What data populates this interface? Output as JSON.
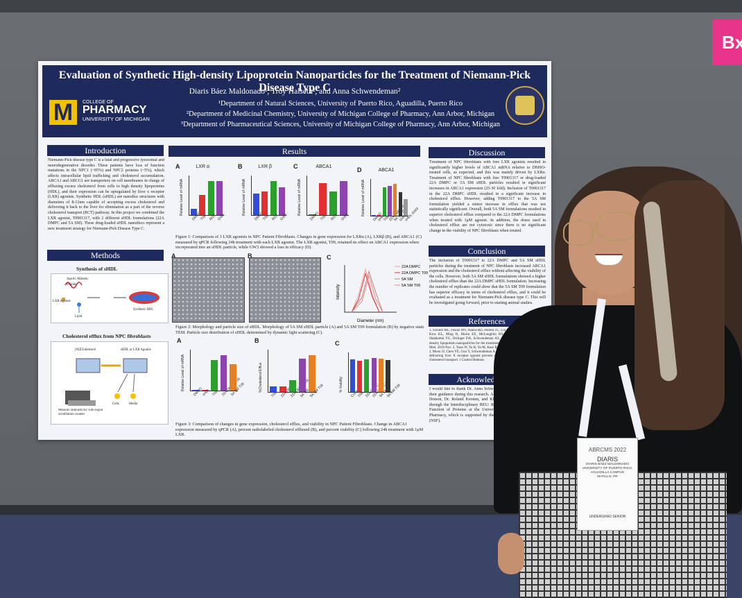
{
  "scene": {
    "sign_letters": "Bx"
  },
  "poster": {
    "title": "Evaluation of Synthetic High-density Lipoprotein Nanoparticles for the Treatment of Niemann-Pick Disease Type C",
    "authors": "Diaris Báez Maldonado¹, Troy Halseth², and Anna Schwendeman²",
    "affiliations": [
      "¹Department of Natural Sciences, University of Puerto Rico, Aguadilla, Puerto Rico",
      "²Department of Medicinal Chemistry, University of Michigan College of Pharmacy, Ann Arbor, Michigan",
      "³Department of Pharmaceutical Sciences, University of Michigan College of Pharmacy, Ann Arbor, Michigan"
    ],
    "logo": {
      "letter": "M",
      "line1": "COLLEGE OF",
      "line2": "PHARMACY",
      "line3": "UNIVERSITY OF MICHIGAN"
    },
    "sections": {
      "introduction": "Introduction",
      "methods": "Methods",
      "results": "Results",
      "discussion": "Discussion",
      "conclusion": "Conclusion",
      "references": "References",
      "acknowledgements": "Acknowledgemen"
    },
    "intro_text": "Niemann-Pick disease type C is a fatal and progressive lysosomal and neurodegenerative disorder. These patients have loss of function mutations in the NPC1 (~95%) and NPC2 proteins (~5%), which affects intracellular lipid trafficking and cholesterol accumulation. ABCA1 and ABCG1 are transporters on cell membranes in charge of effluxing excess cholesterol from cells to high density lipoproteins (HDL), and their expression can be upregulated by liver x receptor (LXR) agonists. Synthetic HDL (sHDL) are nanodisc structures with diameters of 8-12nm capable of accepting excess cholesterol and delivering it back to the liver for elimination as a part of the reverse cholesterol transport (RCT) pathway. In this project we combined the LXR agonist, T0901317, with 2 different sHDL formulations (22A DMPC and 5A SM). These drug-loaded sHDL nanodiscs represent a new treatment strategy for Niemann-Pick Disease Type C.",
    "methods": {
      "synthesis_title": "Synthesis of sHDL",
      "efflux_title": "Cholesterol efflux from NPC fibroblasts",
      "synth_labels": [
        "ApoA1 Mimetic Peptide",
        "LXR Agonist",
        "Lipid",
        "Synthetic HDL"
      ],
      "efflux_labels": [
        "[³H]Cholesterol",
        "sHDL or LXR Agonist",
        "Cells",
        "Media",
        "Measure radioactivity with liquid scintillation counter"
      ]
    },
    "fig1": {
      "caption": "Figure 1: Comparison of 3 LXR agonists in NPC Patient Fibroblasts. Changes in gene expression for LXRα (A), LXRβ (B), and ABCA1 (C) measured by qPCR following 24h treatment with each LXR agonist. The LXR agonist, T09, retained its effect on ABCA1 expression when incorporated into an sHDL particle, while GW3 showed a loss in efficacy (D).",
      "panels": [
        {
          "letter": "A",
          "title": "LXR α"
        },
        {
          "letter": "B",
          "title": "LXR β"
        },
        {
          "letter": "C",
          "title": "ABCA1"
        },
        {
          "letter": "D",
          "title": "ABCA1"
        }
      ],
      "ylabel": "Relative Level of mRNA"
    },
    "fig2": {
      "caption": "Figure 2: Morphology and particle size of sHDL. Morphology of 5A SM sHDL particle (A) and 5A SM T09 formulation (B) by negative stain TEM. Particle size distribution of sHDL determined by dynamic light scattering (C).",
      "panels": [
        "A",
        "B",
        "C"
      ],
      "legend": [
        "22A DMPC",
        "22A DMPC T09",
        "5A SM",
        "5A SM T09"
      ],
      "xlabel": "Diameter (nm)",
      "ylabel": "Intensity"
    },
    "fig3": {
      "caption": "Figure 3: Comparison of changes in gene expression, cholesterol efflux, and viability in NPC Patient Fibroblasts. Change in ABCA1 expression measured by qPCR (A), percent radiolabeled cholesterol effluxed (B), and percent viability (C) following 24h treatment with 1μM LXR.",
      "panels": [
        "A",
        "B",
        "C"
      ],
      "ylabels": [
        "Relative Level of mRNA",
        "%Cholesterol Efflux",
        "% Viability"
      ]
    },
    "discussion_text": "Treatment of NPC fibroblasts with free LXR agonists resulted in significantly higher levels of ABCA1 mRNA relative to DMSO-treated cells, as expected, and this was mainly driven by LXRα. Treatment of NPC fibroblasts with free T0901317 or drug-loaded 22A DMPC or 5A SM sHDL particles resulted in significant increases in ABCA1 expression (25-30 fold). Inclusion of T0901317 in the 22A DMPC sHDL resulted in a significant increase in cholesterol efflux. However, adding T0901317 to the 5A SM formulation yielded a minor increase in efflux that was not statistically significant. Overall, both 5A SM formulations resulted in superior cholesterol efflux compared to the 22A DMPC formulations when treated with 1μM agonist. In addition, the doses used in cholesterol efflux are not cytotoxic since there is no significant change in the viability of NPC fibroblasts when treated.",
    "conclusion_text": "The inclusion of T0901317 to 22A DMPC and 5A SM sHDL particles during the treatment of NPC fibroblasts increased ABCA1 expression and the cholesterol efflux without affecting the viability of the cells. However, both 5A SM sHDL formulations showed a higher cholesterol efflux than the 22A DMPC sHDL formulation. Increasing the number of replicates could show that the 5A SM T09 formulation has superior efficacy in terms of cholesterol efflux, and it could be evaluated as a treatment for Niemann-Pick disease type C. This will be investigated going forward, prior to starting animal studies.",
    "references_text": "1. Schultz ML, Fawaz MV, Azaria RD, Hollon TC, Liu EA, Kunkel TJ, Halseth TA, Krus KL, Ming R, Morin EE, McLoughlin HS, Bushart DD, Paulson HL, Shakkottai VG, Orringer DA, Schwendeman AS, Lieberman AP. Synthetic high-density lipoprotein nanoparticles for the treatment of Niemann-Pick diseases. BMC Med. 2019 Nov. 2. Yuan W, Yu B, Yu M, Kuai R, Morin EE, Wang H, Hu D, Zhang J, Moon JJ, Chen YE, Guo Y, Schwendeman A. Synthetic high-density lipoproteins delivering liver X receptor agonist prevent atherogenesis by enhancing reverse cholesterol transport. J Control Release.",
    "ack_text": "I would like to thank Dr. Anna Schwendeman and Troy Halseth for their guidance during this research. Also, I want to thank Dr. Cherie Dotson, Dr. Roland Kersten, and Khadija Blake for their support through the Interdisciplinary REU: Research into the Structure and Function of Proteins at the University of Michigan College of Pharmacy, which is supported by the National Science Foundation (NSF)."
  },
  "chart_data": [
    {
      "type": "bar",
      "panel": "Fig1 A",
      "title": "LXR α",
      "categories": [
        "DMSO",
        "T09",
        "RGX",
        "GW3"
      ],
      "values": [
        1,
        3,
        5,
        5
      ],
      "colors": [
        "#2f4fd8",
        "#e03030",
        "#2ca02c",
        "#8e44ad"
      ]
    },
    {
      "type": "bar",
      "panel": "Fig1 B",
      "title": "LXR β",
      "categories": [
        "DMSO",
        "T09",
        "RGX",
        "GW3"
      ],
      "values": [
        1,
        1.1,
        1.6,
        1.3
      ],
      "colors": [
        "#2f4fd8",
        "#e03030",
        "#2ca02c",
        "#8e44ad"
      ]
    },
    {
      "type": "bar",
      "panel": "Fig1 C",
      "title": "ABCA1",
      "categories": [
        "DMSO",
        "T09",
        "RGX",
        "GW3"
      ],
      "values": [
        1,
        30,
        22,
        32
      ],
      "colors": [
        "#2f4fd8",
        "#e03030",
        "#2ca02c",
        "#8e44ad"
      ]
    },
    {
      "type": "bar",
      "panel": "Fig1 D",
      "title": "ABCA1",
      "categories": [
        "DMSO",
        "sHDL",
        "T09",
        "22A DMPC T09",
        "5A SM T09",
        "GW3",
        "sHDL GW3"
      ],
      "values": [
        1,
        1,
        25,
        26,
        28,
        21,
        15
      ],
      "colors": [
        "#2f4fd8",
        "#e03030",
        "#2ca02c",
        "#8e44ad",
        "#e67e22",
        "#333333",
        "#999999"
      ]
    },
    {
      "type": "bar",
      "panel": "Fig3 A",
      "categories": [
        "DMSO",
        "sHDL",
        "T09",
        "22A DMPC T09",
        "5A SM T09"
      ],
      "values": [
        1,
        1,
        20,
        23,
        17
      ],
      "colors": [
        "#2f4fd8",
        "#e03030",
        "#2ca02c",
        "#8e44ad",
        "#e67e22"
      ]
    },
    {
      "type": "bar",
      "panel": "Fig3 B",
      "categories": [
        "T09",
        "22A DMPC",
        "22A DMPC T09",
        "5A SM",
        "5A SM T09"
      ],
      "values": [
        2,
        2,
        4,
        11,
        12
      ],
      "colors": [
        "#2f4fd8",
        "#e03030",
        "#2ca02c",
        "#8e44ad",
        "#e67e22"
      ]
    },
    {
      "type": "bar",
      "panel": "Fig3 C",
      "categories": [
        "Control",
        "T09",
        "22A DMPC",
        "22A DMPC T09",
        "5A SM",
        "5A SM T09"
      ],
      "values": [
        100,
        95,
        100,
        105,
        103,
        98
      ],
      "colors": [
        "#2f4fd8",
        "#e03030",
        "#2ca02c",
        "#8e44ad",
        "#e67e22",
        "#333333"
      ]
    },
    {
      "type": "line",
      "panel": "Fig2 C",
      "xlabel": "Diameter (nm)",
      "ylabel": "Intensity",
      "series": [
        {
          "name": "22A DMPC",
          "color": "#f0a0a0",
          "x": [
            6,
            8,
            10,
            12,
            14
          ],
          "y": [
            0,
            8,
            20,
            8,
            0
          ]
        },
        {
          "name": "22A DMPC T09",
          "color": "#e03030",
          "x": [
            6,
            8,
            10,
            12,
            14
          ],
          "y": [
            0,
            6,
            18,
            7,
            0
          ]
        },
        {
          "name": "5A SM",
          "color": "#c08080",
          "x": [
            6,
            9,
            11,
            13,
            15
          ],
          "y": [
            0,
            7,
            19,
            9,
            0
          ]
        },
        {
          "name": "5A SM T09",
          "color": "#e88888",
          "x": [
            6,
            9,
            11,
            13,
            15
          ],
          "y": [
            0,
            5,
            17,
            6,
            0
          ]
        }
      ]
    }
  ],
  "badge": {
    "event": "ABRCMS 2022",
    "first_name": "DIARIS",
    "full_name": "DIARIS BÁEZ MALDONADO",
    "institution": "UNIVERSITY OF PUERTO RICO, AGUADILLA CAMPUS",
    "location": "MATILLO, PR",
    "role": "UNDERGRAD SENIOR",
    "lanyard_text": "abrcms"
  }
}
